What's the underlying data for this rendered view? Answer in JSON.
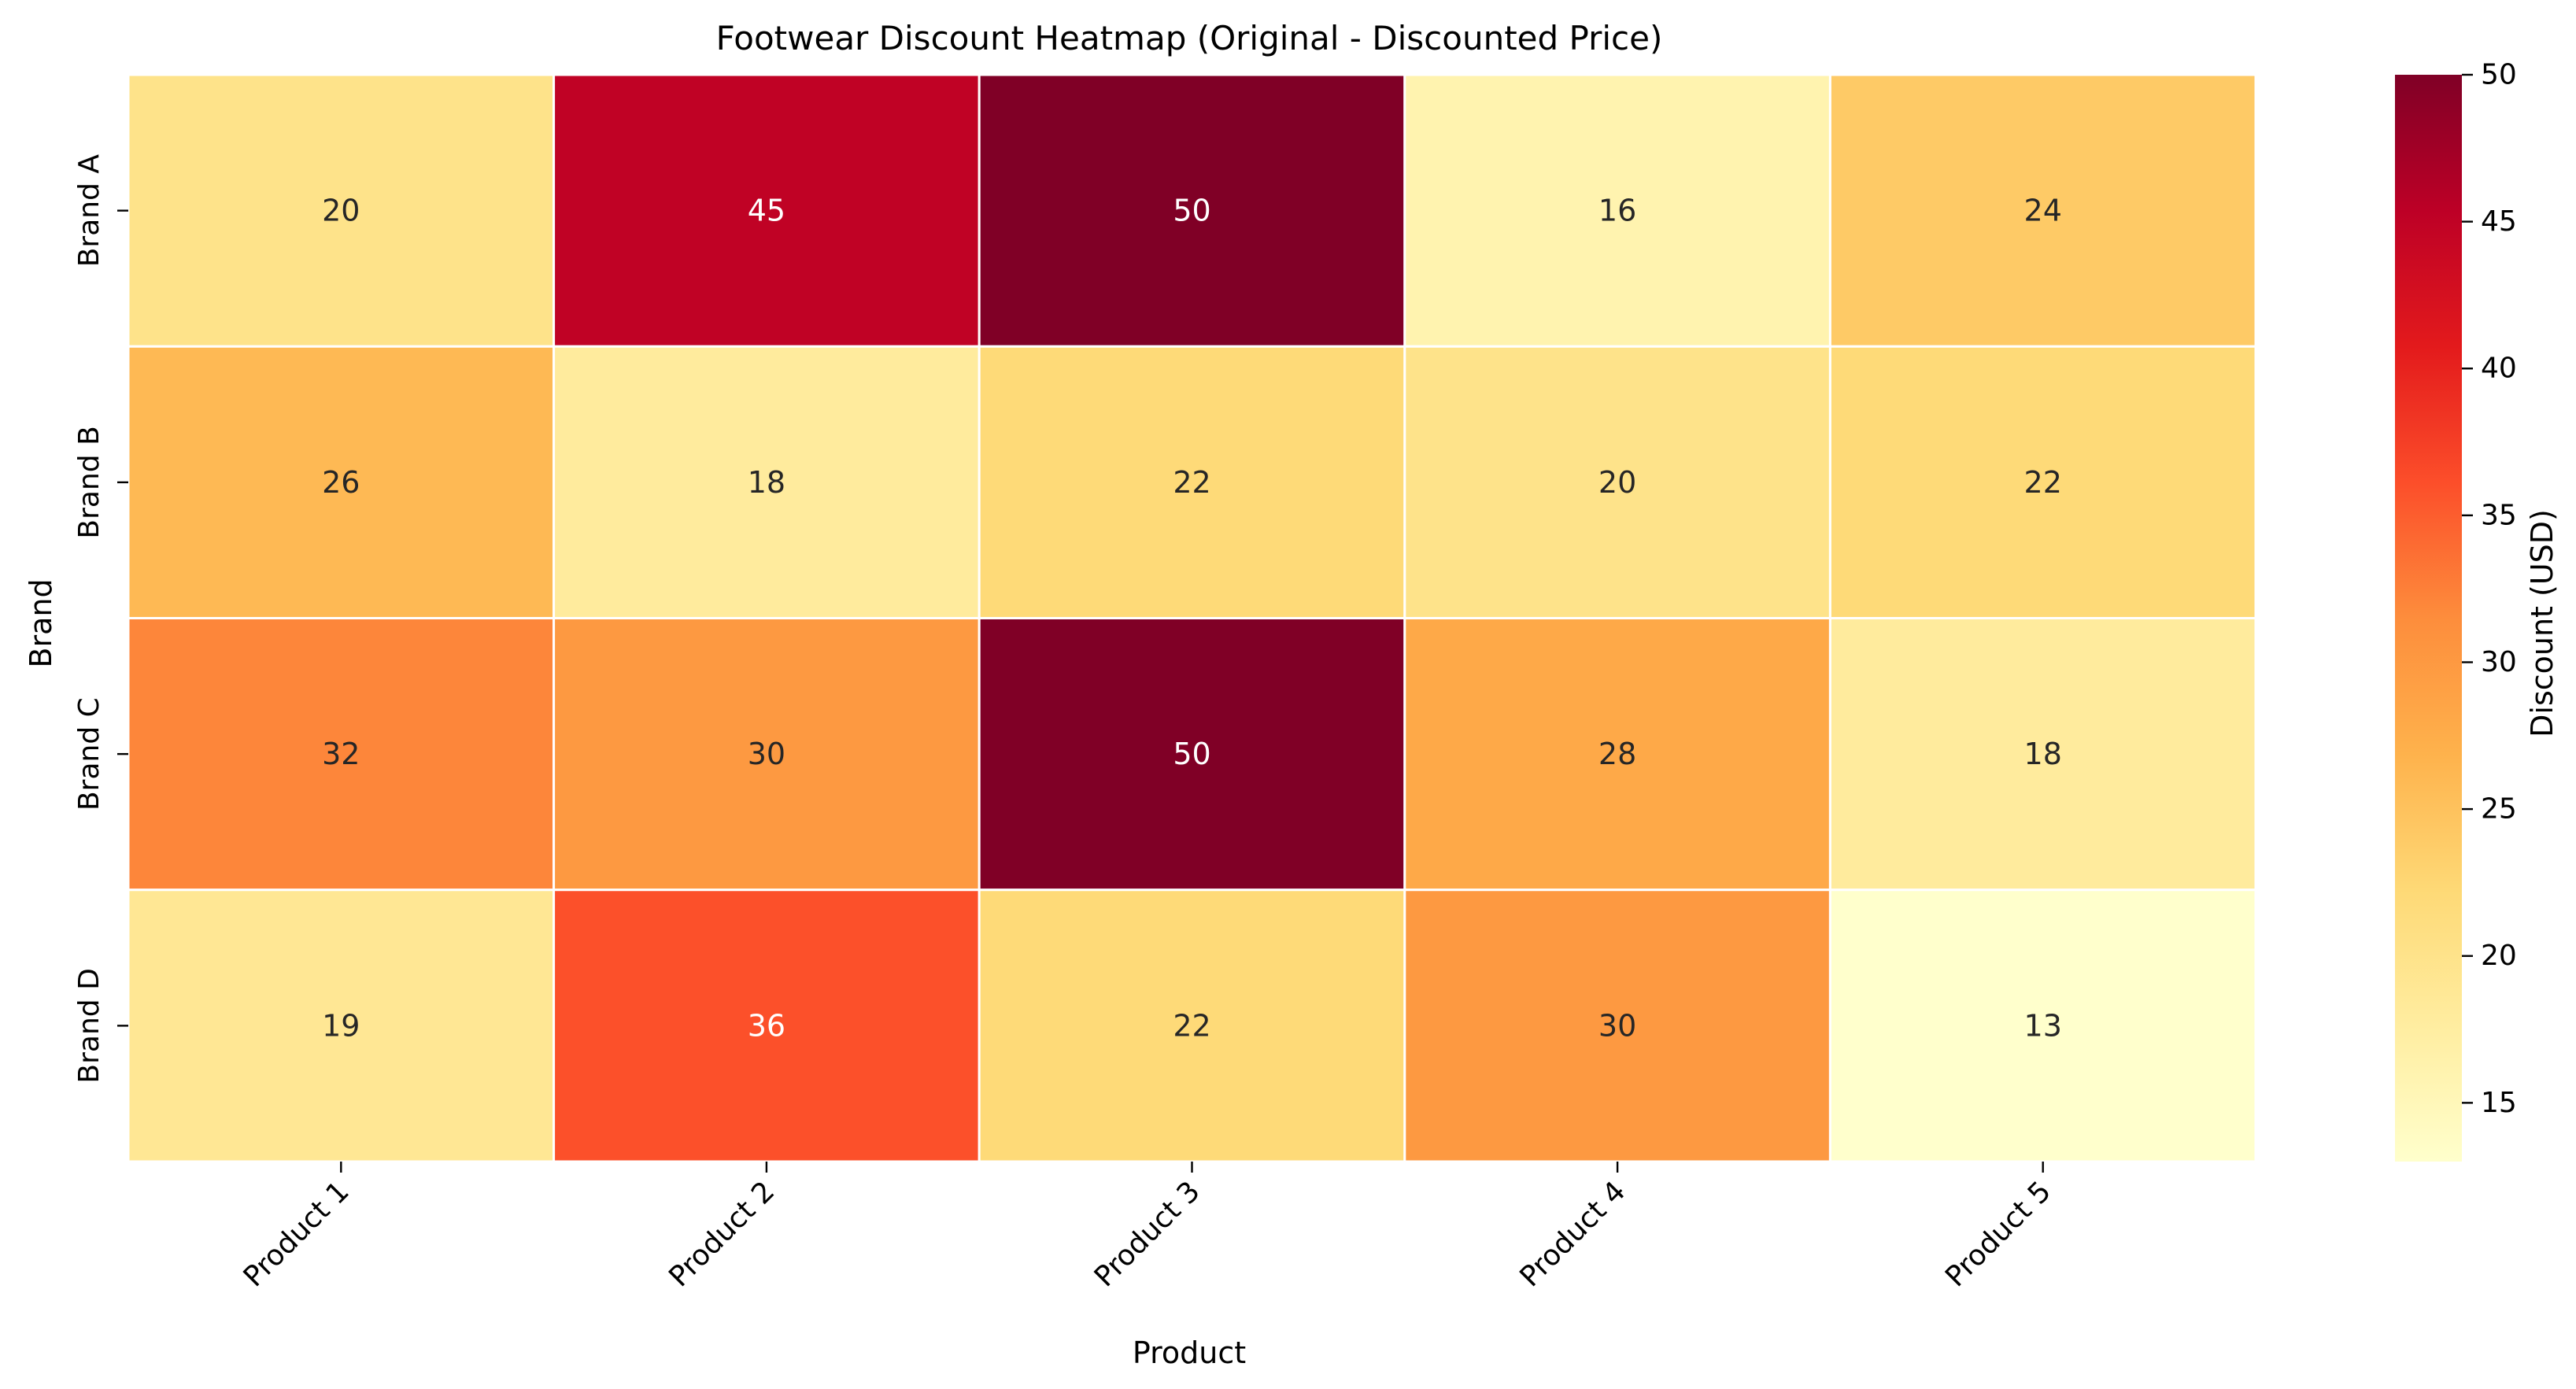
{
  "chart_data": {
    "type": "heatmap",
    "title": "Footwear Discount Heatmap (Original - Discounted Price)",
    "xlabel": "Product",
    "ylabel": "Brand",
    "columns": [
      "Product 1",
      "Product 2",
      "Product 3",
      "Product 4",
      "Product 5"
    ],
    "rows": [
      "Brand A",
      "Brand B",
      "Brand C",
      "Brand D"
    ],
    "values": [
      [
        20,
        45,
        50,
        16,
        24
      ],
      [
        26,
        18,
        22,
        20,
        22
      ],
      [
        32,
        30,
        50,
        28,
        18
      ],
      [
        19,
        36,
        22,
        30,
        13
      ]
    ],
    "colorbar": {
      "label": "Discount (USD)",
      "range": [
        13,
        50
      ],
      "ticks": [
        15,
        20,
        25,
        30,
        35,
        40,
        45,
        50
      ],
      "colormap": "YlOrRd"
    },
    "colors": {
      "cell_border": "#ffffff",
      "text_dark": "#262626",
      "text_light": "#ffffff"
    }
  }
}
